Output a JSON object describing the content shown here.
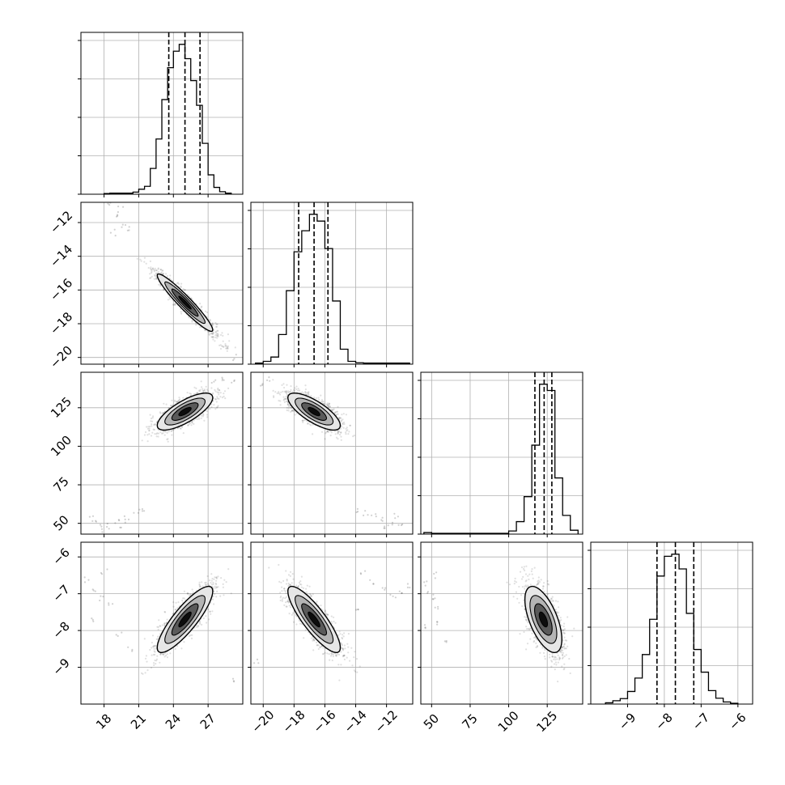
{
  "chart_data": {
    "type": "scatter",
    "subtype": "corner-plot",
    "grid": true,
    "title": "",
    "colors": {
      "frame": "#000000",
      "grid": "#b0b0b0",
      "points": "#000000",
      "contour_dark": "#000000",
      "contour_mid": "#5a5a5a",
      "contour_light": "#b4b4b4",
      "contour_lightest": "#e6e6e6"
    },
    "parameters": [
      {
        "xlim": [
          16,
          30
        ],
        "xticks": [
          18,
          21,
          24,
          27
        ],
        "xtick_labels": [
          "18",
          "21",
          "24",
          "27"
        ],
        "quantiles": [
          23.6,
          25.0,
          26.3
        ],
        "histogram": {
          "bin_edges": [
            18.0,
            18.5,
            19.0,
            19.5,
            20.0,
            20.5,
            21.0,
            21.5,
            22.0,
            22.5,
            23.0,
            23.5,
            24.0,
            24.5,
            25.0,
            25.5,
            26.0,
            26.5,
            27.0,
            27.5,
            28.0,
            28.5,
            29.0
          ],
          "counts": [
            0.2,
            0.3,
            0.3,
            0.3,
            0.3,
            0.6,
            1.4,
            2.2,
            7.2,
            15.4,
            26.4,
            35.3,
            39.9,
            41.8,
            37.8,
            31.7,
            24.8,
            14.2,
            5.4,
            1.9,
            0.7,
            0.3
          ]
        }
      },
      {
        "ylim": [
          -20.4,
          -10.8
        ],
        "yticks": [
          -12,
          -14,
          -16,
          -18,
          -20
        ],
        "ytick_labels": [
          "−12",
          "−14",
          "−16",
          "−18",
          "−20"
        ],
        "xlim": [
          -20.8,
          -10.3
        ],
        "xticks": [
          -20,
          -18,
          -16,
          -14,
          -12
        ],
        "xtick_labels": [
          "−20",
          "−18",
          "−16",
          "−14",
          "−12"
        ],
        "quantiles": [
          -17.7,
          -16.7,
          -15.8
        ],
        "histogram": {
          "bin_edges": [
            -20.5,
            -20.0,
            -19.5,
            -19.0,
            -18.5,
            -18.0,
            -17.5,
            -17.0,
            -16.5,
            -16.0,
            -15.5,
            -15.0,
            -14.5,
            -14.0,
            -13.5,
            -13.0,
            -12.5,
            -12.0,
            -11.5,
            -11.0,
            -10.5
          ],
          "counts": [
            0.3,
            0.8,
            2.0,
            8.3,
            20.6,
            31.5,
            37.4,
            42.0,
            40.1,
            32.4,
            17.7,
            4.2,
            0.8,
            0.4,
            0.3,
            0.3,
            0.3,
            0.3,
            0.3,
            0.3
          ]
        }
      },
      {
        "ylim": [
          43,
          148
        ],
        "yticks": [
          125,
          100,
          75,
          50
        ],
        "ytick_labels": [
          "125",
          "100",
          "75",
          "50"
        ],
        "xlim": [
          43,
          148
        ],
        "xticks": [
          50,
          75,
          100,
          125
        ],
        "xtick_labels": [
          "50",
          "75",
          "100",
          "125"
        ],
        "quantiles": [
          117,
          123,
          128
        ],
        "histogram": {
          "bin_edges": [
            45,
            50,
            55,
            60,
            65,
            70,
            75,
            80,
            85,
            90,
            95,
            100,
            105,
            110,
            115,
            120,
            125,
            130,
            135,
            140,
            145
          ],
          "counts": [
            0.2,
            0.1,
            0.1,
            0.1,
            0.1,
            0.1,
            0.1,
            0.1,
            0.1,
            0.1,
            0.1,
            0.4,
            1.6,
            4.8,
            11.4,
            19.2,
            18.4,
            7.2,
            2.4,
            0.5
          ]
        }
      },
      {
        "ylim": [
          -10.0,
          -5.6
        ],
        "yticks": [
          -6,
          -7,
          -8,
          -9
        ],
        "ytick_labels": [
          "−6",
          "−7",
          "−8",
          "−9"
        ],
        "xlim": [
          -10.0,
          -5.6
        ],
        "xticks": [
          -9,
          -8,
          -7,
          -6
        ],
        "xtick_labels": [
          "−9",
          "−8",
          "−7",
          "−6"
        ],
        "quantiles": [
          -8.2,
          -7.7,
          -7.2
        ],
        "histogram": {
          "bin_edges": [
            -9.6,
            -9.4,
            -9.2,
            -9.0,
            -8.8,
            -8.6,
            -8.4,
            -8.2,
            -8.0,
            -7.8,
            -7.6,
            -7.4,
            -7.2,
            -7.0,
            -6.8,
            -6.6,
            -6.4,
            -6.2,
            -6.0
          ],
          "counts": [
            0.3,
            0.8,
            1.3,
            3.0,
            6.2,
            11.8,
            20.2,
            30.5,
            35.2,
            35.7,
            32.2,
            21.6,
            13.0,
            7.6,
            3.2,
            1.4,
            0.5,
            0.2
          ]
        }
      }
    ],
    "pairs": [
      {
        "x": 0,
        "y": 1,
        "center": [
          25.0,
          -16.75
        ],
        "sigma": [
          1.2,
          0.85
        ],
        "rho": -0.95,
        "outliers": [
          [
            18.3,
            -11.0
          ],
          [
            19.1,
            -11.5
          ],
          [
            19.8,
            -12.1
          ],
          [
            18.8,
            -12.6
          ],
          [
            20.3,
            -12.4
          ],
          [
            19.4,
            -11.2
          ],
          [
            28.8,
            -19.6
          ],
          [
            29.4,
            -20.0
          ],
          [
            28.3,
            -19.3
          ]
        ]
      },
      {
        "x": 0,
        "y": 2,
        "center": [
          25.0,
          122.5
        ],
        "sigma": [
          1.2,
          6.0
        ],
        "rho": 0.75,
        "outliers": [
          [
            17.5,
            50
          ],
          [
            18.3,
            48
          ],
          [
            19.2,
            52
          ],
          [
            20.0,
            54
          ],
          [
            20.8,
            57
          ],
          [
            21.5,
            58
          ],
          [
            17.9,
            46
          ],
          [
            16.8,
            53
          ],
          [
            19.6,
            49
          ],
          [
            27.5,
            142
          ],
          [
            28.3,
            145
          ],
          [
            29.2,
            143
          ]
        ]
      },
      {
        "x": 1,
        "y": 2,
        "center": [
          -16.7,
          122.5
        ],
        "sigma": [
          0.85,
          6.0
        ],
        "rho": -0.75,
        "outliers": [
          [
            -13.3,
            56
          ],
          [
            -12.8,
            54
          ],
          [
            -12.3,
            52
          ],
          [
            -11.7,
            50
          ],
          [
            -11.1,
            48
          ],
          [
            -12.0,
            46
          ],
          [
            -13.8,
            59
          ],
          [
            -11.4,
            55
          ],
          [
            -20.2,
            141
          ],
          [
            -19.7,
            144
          ]
        ]
      },
      {
        "x": 0,
        "y": 3,
        "center": [
          25.0,
          -7.7
        ],
        "sigma": [
          1.2,
          0.45
        ],
        "rho": 0.85,
        "outliers": [
          [
            16.5,
            -6.6
          ],
          [
            17.2,
            -6.9
          ],
          [
            17.8,
            -7.1
          ],
          [
            18.5,
            -7.3
          ],
          [
            19.3,
            -8.1
          ],
          [
            16.9,
            -7.7
          ],
          [
            20.2,
            -8.5
          ],
          [
            18.0,
            -6.4
          ],
          [
            29.2,
            -9.3
          ]
        ]
      },
      {
        "x": 1,
        "y": 3,
        "center": [
          -16.7,
          -7.7
        ],
        "sigma": [
          0.85,
          0.45
        ],
        "rho": -0.85,
        "outliers": [
          [
            -13.5,
            -6.4
          ],
          [
            -12.9,
            -6.7
          ],
          [
            -12.2,
            -6.9
          ],
          [
            -11.6,
            -7.1
          ],
          [
            -11.0,
            -7.0
          ],
          [
            -13.9,
            -7.4
          ],
          [
            -10.6,
            -6.8
          ],
          [
            -20.5,
            -8.8
          ]
        ]
      },
      {
        "x": 2,
        "y": 3,
        "center": [
          122.5,
          -7.7
        ],
        "sigma": [
          6.0,
          0.45
        ],
        "rho": -0.6,
        "outliers": [
          [
            47,
            -6.7
          ],
          [
            49,
            -7.0
          ],
          [
            51,
            -7.2
          ],
          [
            53,
            -7.4
          ],
          [
            55,
            -7.8
          ],
          [
            46,
            -7.9
          ],
          [
            52,
            -6.5
          ],
          [
            58,
            -8.3
          ]
        ]
      }
    ]
  }
}
